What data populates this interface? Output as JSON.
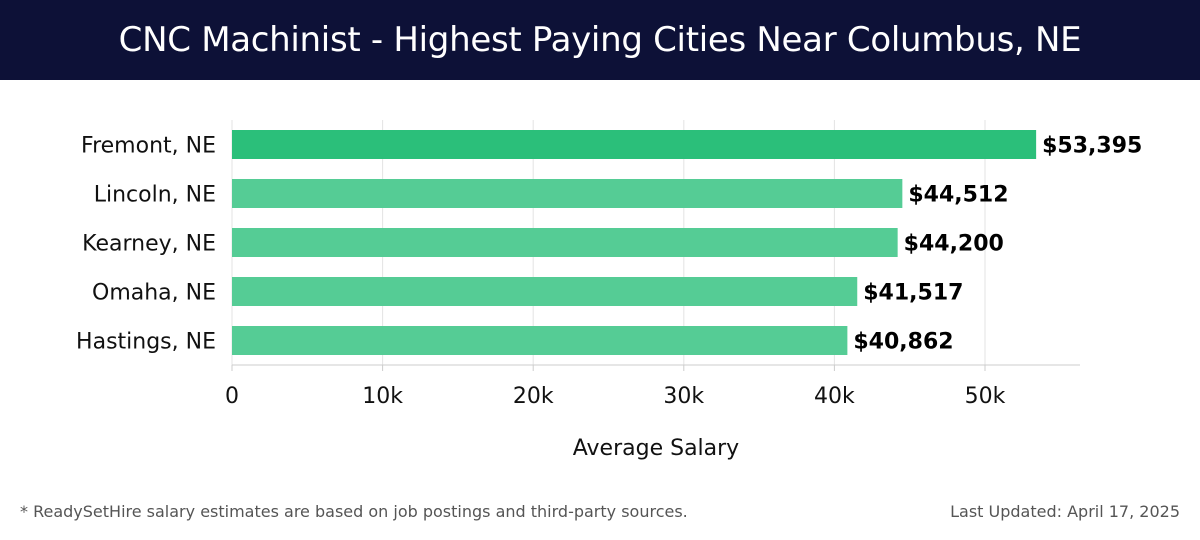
{
  "header": {
    "title": "CNC Machinist - Highest Paying Cities Near Columbus, NE"
  },
  "footer": {
    "note": "* ReadySetHire salary estimates are based on job postings and third-party sources.",
    "updated": "Last Updated: April 17, 2025"
  },
  "colors": {
    "header_bg": "#0d1137",
    "top_bar": "#2bbf7a",
    "bar": "#55cc95"
  },
  "chart_data": {
    "type": "bar",
    "orientation": "horizontal",
    "categories": [
      "Fremont, NE",
      "Lincoln, NE",
      "Kearney, NE",
      "Omaha, NE",
      "Hastings, NE"
    ],
    "values": [
      53395,
      44512,
      44200,
      41517,
      40862
    ],
    "value_labels": [
      "$53,395",
      "$44,512",
      "$44,200",
      "$41,517",
      "$40,862"
    ],
    "xlabel": "Average Salary",
    "ylabel": "",
    "xlim": [
      0,
      56000
    ],
    "xticks": [
      0,
      10000,
      20000,
      30000,
      40000,
      50000
    ],
    "xtick_labels": [
      "0",
      "10k",
      "20k",
      "30k",
      "40k",
      "50k"
    ],
    "grid": true,
    "legend": "none"
  }
}
